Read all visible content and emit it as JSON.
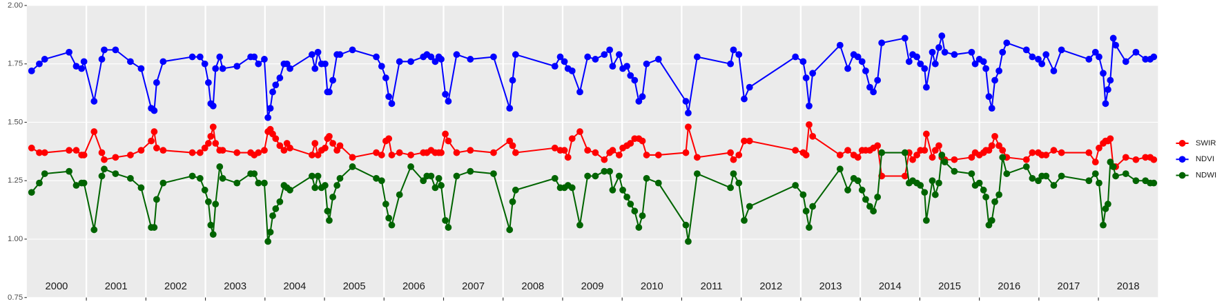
{
  "chart_data": {
    "type": "line",
    "x": [
      2000.08,
      2000.21,
      2000.3,
      2000.71,
      2000.83,
      2000.92,
      2000.96,
      2001.13,
      2001.26,
      2001.3,
      2001.49,
      2001.74,
      2001.92,
      2002.09,
      2002.14,
      2002.18,
      2002.29,
      2002.78,
      2002.91,
      2002.99,
      2003.05,
      2003.09,
      2003.13,
      2003.17,
      2003.24,
      2003.29,
      2003.53,
      2003.76,
      2003.82,
      2003.89,
      2003.99,
      2004.05,
      2004.09,
      2004.13,
      2004.18,
      2004.25,
      2004.32,
      2004.37,
      2004.42,
      2004.79,
      2004.84,
      2004.89,
      2004.95,
      2005.01,
      2005.05,
      2005.08,
      2005.14,
      2005.21,
      2005.26,
      2005.47,
      2005.87,
      2005.96,
      2006.03,
      2006.08,
      2006.13,
      2006.26,
      2006.45,
      2006.66,
      2006.72,
      2006.79,
      2006.86,
      2006.92,
      2006.96,
      2007.03,
      2007.08,
      2007.22,
      2007.45,
      2007.84,
      2008.11,
      2008.16,
      2008.21,
      2008.87,
      2008.96,
      2009.03,
      2009.09,
      2009.16,
      2009.29,
      2009.42,
      2009.55,
      2009.7,
      2009.79,
      2009.84,
      2009.95,
      2010.01,
      2010.08,
      2010.14,
      2010.21,
      2010.28,
      2010.34,
      2010.41,
      2010.61,
      2011.07,
      2011.11,
      2011.26,
      2011.82,
      2011.87,
      2011.96,
      2012.05,
      2012.14,
      2012.91,
      2013.04,
      2013.09,
      2013.14,
      2013.2,
      2013.66,
      2013.79,
      2013.89,
      2013.96,
      2014.03,
      2014.09,
      2014.16,
      2014.22,
      2014.29,
      2014.36,
      2014.75,
      2014.82,
      2014.88,
      2014.95,
      2015.01,
      2015.08,
      2015.11,
      2015.21,
      2015.26,
      2015.32,
      2015.37,
      2015.42,
      2015.58,
      2015.87,
      2015.93,
      2016.0,
      2016.07,
      2016.11,
      2016.16,
      2016.21,
      2016.26,
      2016.33,
      2016.39,
      2016.46,
      2016.79,
      2016.89,
      2016.99,
      2017.05,
      2017.12,
      2017.25,
      2017.38,
      2017.84,
      2017.95,
      2018.01,
      2018.08,
      2018.12,
      2018.16,
      2018.2,
      2018.25,
      2018.29,
      2018.46,
      2018.63,
      2018.79,
      2018.87,
      2018.93
    ],
    "series": [
      {
        "name": "SWIR",
        "color": "#ff0000",
        "values": [
          1.39,
          1.37,
          1.37,
          1.38,
          1.38,
          1.36,
          1.36,
          1.46,
          1.37,
          1.34,
          1.35,
          1.36,
          1.38,
          1.42,
          1.46,
          1.39,
          1.38,
          1.37,
          1.37,
          1.39,
          1.41,
          1.44,
          1.48,
          1.41,
          1.38,
          1.38,
          1.37,
          1.37,
          1.36,
          1.37,
          1.38,
          1.46,
          1.47,
          1.45,
          1.43,
          1.4,
          1.38,
          1.41,
          1.39,
          1.36,
          1.41,
          1.36,
          1.38,
          1.39,
          1.43,
          1.44,
          1.41,
          1.38,
          1.4,
          1.35,
          1.37,
          1.36,
          1.42,
          1.43,
          1.36,
          1.37,
          1.36,
          1.37,
          1.37,
          1.38,
          1.37,
          1.37,
          1.37,
          1.45,
          1.42,
          1.37,
          1.38,
          1.37,
          1.42,
          1.4,
          1.37,
          1.39,
          1.38,
          1.38,
          1.35,
          1.43,
          1.46,
          1.38,
          1.37,
          1.34,
          1.37,
          1.38,
          1.36,
          1.39,
          1.4,
          1.41,
          1.43,
          1.43,
          1.42,
          1.36,
          1.36,
          1.37,
          1.48,
          1.35,
          1.37,
          1.34,
          1.36,
          1.42,
          1.42,
          1.38,
          1.37,
          1.36,
          1.49,
          1.44,
          1.36,
          1.38,
          1.36,
          1.35,
          1.38,
          1.38,
          1.38,
          1.39,
          1.4,
          1.27,
          1.27,
          1.37,
          1.34,
          1.36,
          1.38,
          1.38,
          1.45,
          1.35,
          1.38,
          1.4,
          1.35,
          1.34,
          1.34,
          1.35,
          1.37,
          1.36,
          1.37,
          1.38,
          1.38,
          1.4,
          1.44,
          1.4,
          1.38,
          1.35,
          1.34,
          1.37,
          1.37,
          1.36,
          1.36,
          1.38,
          1.37,
          1.37,
          1.33,
          1.39,
          1.41,
          1.42,
          1.42,
          1.43,
          1.31,
          1.31,
          1.35,
          1.34,
          1.35,
          1.35,
          1.34
        ]
      },
      {
        "name": "NDVI",
        "color": "#0000ff",
        "values": [
          1.72,
          1.75,
          1.77,
          1.8,
          1.74,
          1.73,
          1.76,
          1.59,
          1.77,
          1.81,
          1.81,
          1.76,
          1.73,
          1.56,
          1.55,
          1.67,
          1.76,
          1.78,
          1.78,
          1.75,
          1.67,
          1.58,
          1.57,
          1.73,
          1.78,
          1.73,
          1.74,
          1.78,
          1.78,
          1.75,
          1.77,
          1.52,
          1.56,
          1.63,
          1.66,
          1.69,
          1.75,
          1.75,
          1.73,
          1.79,
          1.73,
          1.8,
          1.75,
          1.75,
          1.63,
          1.63,
          1.68,
          1.79,
          1.79,
          1.81,
          1.78,
          1.74,
          1.69,
          1.61,
          1.58,
          1.76,
          1.76,
          1.78,
          1.79,
          1.78,
          1.76,
          1.78,
          1.77,
          1.62,
          1.59,
          1.79,
          1.77,
          1.78,
          1.56,
          1.68,
          1.79,
          1.74,
          1.78,
          1.76,
          1.73,
          1.72,
          1.63,
          1.78,
          1.77,
          1.79,
          1.81,
          1.74,
          1.79,
          1.73,
          1.74,
          1.7,
          1.68,
          1.59,
          1.61,
          1.75,
          1.77,
          1.59,
          1.54,
          1.78,
          1.75,
          1.81,
          1.79,
          1.6,
          1.65,
          1.78,
          1.76,
          1.69,
          1.57,
          1.71,
          1.83,
          1.73,
          1.79,
          1.78,
          1.76,
          1.72,
          1.65,
          1.63,
          1.68,
          1.84,
          1.86,
          1.76,
          1.79,
          1.78,
          1.75,
          1.73,
          1.65,
          1.8,
          1.75,
          1.82,
          1.87,
          1.8,
          1.79,
          1.8,
          1.75,
          1.77,
          1.76,
          1.73,
          1.61,
          1.56,
          1.68,
          1.72,
          1.8,
          1.84,
          1.81,
          1.78,
          1.77,
          1.75,
          1.79,
          1.72,
          1.81,
          1.77,
          1.8,
          1.78,
          1.71,
          1.58,
          1.64,
          1.68,
          1.86,
          1.83,
          1.76,
          1.8,
          1.77,
          1.77,
          1.78
        ]
      },
      {
        "name": "NDWI",
        "color": "#006400",
        "values": [
          1.2,
          1.24,
          1.28,
          1.29,
          1.23,
          1.24,
          1.24,
          1.04,
          1.27,
          1.3,
          1.28,
          1.26,
          1.22,
          1.05,
          1.05,
          1.17,
          1.24,
          1.27,
          1.26,
          1.21,
          1.16,
          1.06,
          1.02,
          1.15,
          1.31,
          1.26,
          1.24,
          1.28,
          1.28,
          1.24,
          1.24,
          0.99,
          1.03,
          1.1,
          1.13,
          1.16,
          1.23,
          1.22,
          1.21,
          1.27,
          1.22,
          1.27,
          1.22,
          1.23,
          1.12,
          1.08,
          1.18,
          1.23,
          1.26,
          1.31,
          1.26,
          1.25,
          1.15,
          1.09,
          1.06,
          1.19,
          1.31,
          1.25,
          1.27,
          1.27,
          1.22,
          1.26,
          1.23,
          1.08,
          1.05,
          1.27,
          1.29,
          1.28,
          1.04,
          1.16,
          1.21,
          1.26,
          1.22,
          1.22,
          1.23,
          1.22,
          1.06,
          1.27,
          1.27,
          1.29,
          1.29,
          1.21,
          1.27,
          1.21,
          1.18,
          1.15,
          1.12,
          1.05,
          1.1,
          1.26,
          1.24,
          1.06,
          0.99,
          1.28,
          1.22,
          1.28,
          1.24,
          1.08,
          1.14,
          1.23,
          1.19,
          1.12,
          1.05,
          1.14,
          1.3,
          1.21,
          1.26,
          1.25,
          1.21,
          1.17,
          1.14,
          1.12,
          1.18,
          1.37,
          1.37,
          1.24,
          1.25,
          1.24,
          1.23,
          1.2,
          1.08,
          1.25,
          1.19,
          1.24,
          1.36,
          1.33,
          1.29,
          1.28,
          1.23,
          1.24,
          1.21,
          1.18,
          1.06,
          1.08,
          1.16,
          1.19,
          1.35,
          1.28,
          1.31,
          1.26,
          1.25,
          1.27,
          1.27,
          1.23,
          1.27,
          1.25,
          1.28,
          1.24,
          1.06,
          1.13,
          1.15,
          1.33,
          1.31,
          1.27,
          1.28,
          1.25,
          1.25,
          1.24,
          1.24
        ]
      }
    ],
    "xlim": [
      2000,
      2019
    ],
    "xticks": [
      2001,
      2002,
      2003,
      2004,
      2005,
      2006,
      2007,
      2008,
      2009,
      2010,
      2011,
      2012,
      2013,
      2014,
      2015,
      2016,
      2017,
      2018
    ],
    "year_labels": [
      "2000",
      "2001",
      "2002",
      "2003",
      "2004",
      "2005",
      "2006",
      "2007",
      "2008",
      "2009",
      "2010",
      "2011",
      "2012",
      "2013",
      "2014",
      "2015",
      "2016",
      "2017",
      "2018"
    ],
    "ylim": [
      0.75,
      2
    ],
    "yticks": [
      0.75,
      {
        "value": 1,
        "label": "1.00"
      },
      1.25,
      {
        "value": 1.5,
        "label": "1.50"
      },
      1.75,
      {
        "value": 2,
        "label": "2.00"
      }
    ],
    "grid": true,
    "legend": "right"
  }
}
